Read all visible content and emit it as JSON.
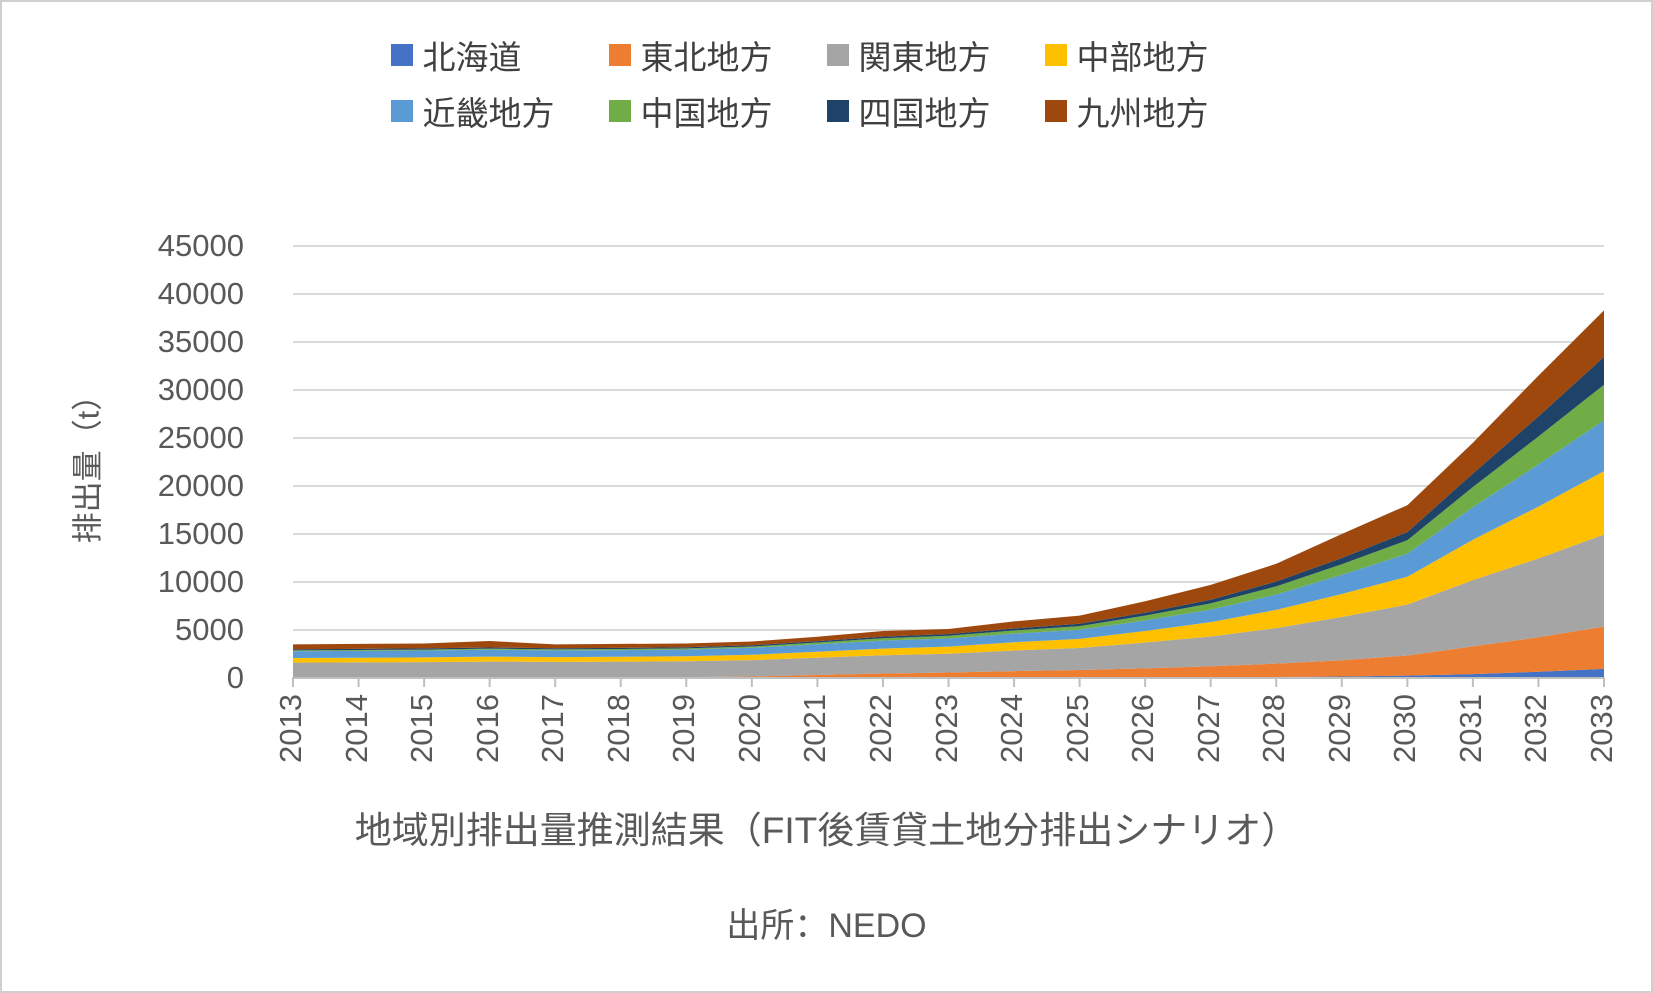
{
  "legend": {
    "items": [
      {
        "label": "北海道",
        "color": "#4472C4"
      },
      {
        "label": "東北地方",
        "color": "#ED7D31"
      },
      {
        "label": "関東地方",
        "color": "#A5A5A5"
      },
      {
        "label": "中部地方",
        "color": "#FFC000"
      },
      {
        "label": "近畿地方",
        "color": "#5B9BD5"
      },
      {
        "label": "中国地方",
        "color": "#70AD47"
      },
      {
        "label": "四国地方",
        "color": "#1F4368"
      },
      {
        "label": "九州地方",
        "color": "#9E480E"
      }
    ]
  },
  "chart_data": {
    "type": "area",
    "stacked": true,
    "title": "地域別排出量推測結果（FIT後賃貸土地分排出シナリオ）",
    "source": "出所：NEDO",
    "xlabel": "",
    "ylabel": "排出量（t）",
    "ylim": [
      0,
      45000
    ],
    "y_tick_step": 5000,
    "y_ticks": [
      "45000",
      "40000",
      "35000",
      "30000",
      "25000",
      "20000",
      "15000",
      "10000",
      "5000",
      "0"
    ],
    "grid": true,
    "legend_position": "top",
    "x_labels": [
      "2013",
      "2014",
      "2015",
      "2016",
      "2017",
      "2018",
      "2019",
      "2020",
      "2021",
      "2022",
      "2023",
      "2024",
      "2025",
      "2026",
      "2027",
      "2028",
      "2029",
      "2030",
      "2031",
      "2032",
      "2033"
    ],
    "series": [
      {
        "name": "北海道",
        "color": "#4472C4",
        "values": [
          10,
          10,
          10,
          10,
          10,
          10,
          10,
          10,
          15,
          15,
          20,
          20,
          30,
          50,
          70,
          100,
          150,
          250,
          400,
          650,
          950
        ]
      },
      {
        "name": "東北地方",
        "color": "#ED7D31",
        "values": [
          30,
          35,
          40,
          50,
          50,
          60,
          80,
          150,
          300,
          450,
          550,
          700,
          800,
          950,
          1150,
          1400,
          1700,
          2100,
          2900,
          3600,
          4400
        ]
      },
      {
        "name": "関東地方",
        "color": "#A5A5A5",
        "values": [
          1560,
          1580,
          1600,
          1650,
          1620,
          1630,
          1650,
          1700,
          1800,
          1900,
          1950,
          2150,
          2300,
          2700,
          3100,
          3700,
          4500,
          5300,
          6900,
          8200,
          9600
        ]
      },
      {
        "name": "中部地方",
        "color": "#FFC000",
        "values": [
          480,
          490,
          500,
          520,
          500,
          510,
          520,
          560,
          620,
          700,
          750,
          850,
          950,
          1200,
          1500,
          1900,
          2400,
          2900,
          4200,
          5400,
          6600
        ]
      },
      {
        "name": "近畿地方",
        "color": "#5B9BD5",
        "values": [
          700,
          705,
          710,
          720,
          700,
          700,
          710,
          730,
          780,
          830,
          850,
          900,
          950,
          1100,
          1300,
          1600,
          2000,
          2400,
          3400,
          4400,
          5300
        ]
      },
      {
        "name": "中国地方",
        "color": "#70AD47",
        "values": [
          100,
          100,
          100,
          110,
          100,
          110,
          110,
          130,
          180,
          250,
          280,
          330,
          380,
          500,
          650,
          850,
          1100,
          1400,
          2100,
          2900,
          3700
        ]
      },
      {
        "name": "四国地方",
        "color": "#1F4368",
        "values": [
          120,
          120,
          120,
          120,
          120,
          120,
          120,
          130,
          150,
          170,
          180,
          210,
          240,
          300,
          380,
          500,
          650,
          850,
          1400,
          2100,
          2900
        ]
      },
      {
        "name": "九州地方",
        "color": "#9E480E",
        "values": [
          500,
          510,
          520,
          670,
          400,
          410,
          400,
          390,
          455,
          585,
          520,
          740,
          850,
          1200,
          1550,
          1850,
          2500,
          2800,
          3200,
          4250,
          4850
        ]
      }
    ],
    "colors": {
      "gridline": "#D9D9D9",
      "axis": "#BFBFBF",
      "tick_text": "#595959",
      "legend_text": "#404040"
    }
  }
}
